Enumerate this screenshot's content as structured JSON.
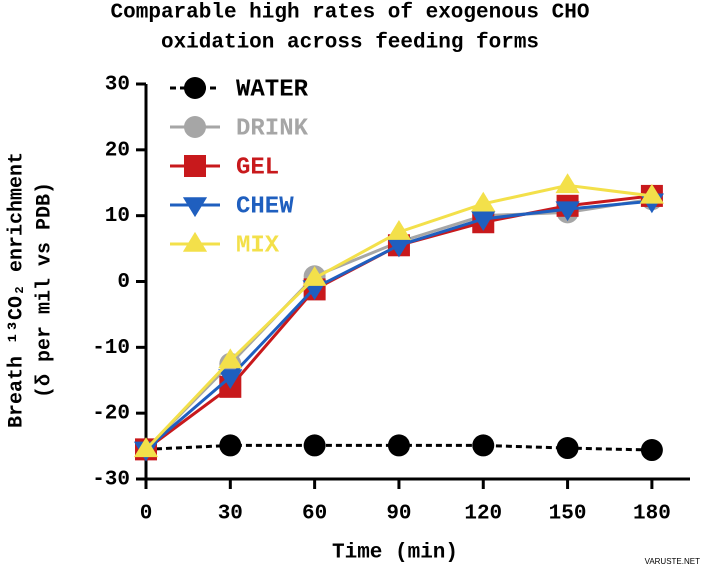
{
  "chart_data": {
    "type": "line",
    "title": [
      "Comparable high rates of exogenous CHO",
      "oxidation across feeding forms"
    ],
    "x_label": "Time (min)",
    "y_label": [
      "Breath ¹³CO₂ enrichment",
      "(δ per mil vs PDB)"
    ],
    "x": [
      0,
      30,
      60,
      90,
      120,
      150,
      180
    ],
    "xlim": [
      0,
      190
    ],
    "xticks": [
      0,
      30,
      60,
      90,
      120,
      150,
      180
    ],
    "ylim": [
      -30,
      30
    ],
    "yticks": [
      -30,
      -20,
      -10,
      0,
      10,
      20,
      30
    ],
    "legend": "top-left",
    "series": [
      {
        "name": "WATER",
        "color": "#000000",
        "marker": "circle",
        "line_style": "dashed",
        "values": [
          -25.5,
          -24.9,
          -24.9,
          -24.9,
          -24.9,
          -25.3,
          -25.6
        ]
      },
      {
        "name": "DRINK",
        "color": "#a6a6a6",
        "marker": "circle",
        "line_style": "solid",
        "values": [
          -25.5,
          -12.5,
          0.8,
          6,
          10,
          10.5,
          12.5
        ]
      },
      {
        "name": "GEL",
        "color": "#c8191c",
        "marker": "square",
        "line_style": "solid",
        "values": [
          -25.5,
          -16,
          -1.2,
          5.5,
          9,
          11.5,
          13
        ]
      },
      {
        "name": "CHEW",
        "color": "#1f5fbf",
        "marker": "triangle-down",
        "line_style": "solid",
        "values": [
          -25.5,
          -14.5,
          -1,
          5.5,
          9.5,
          11,
          12.2
        ]
      },
      {
        "name": "MIX",
        "color": "#f3e04a",
        "marker": "triangle-up",
        "line_style": "solid",
        "values": [
          -25.5,
          -12,
          0.5,
          7.5,
          11.8,
          14.6,
          13
        ]
      }
    ],
    "watermark": "VARUSTE.NET"
  }
}
